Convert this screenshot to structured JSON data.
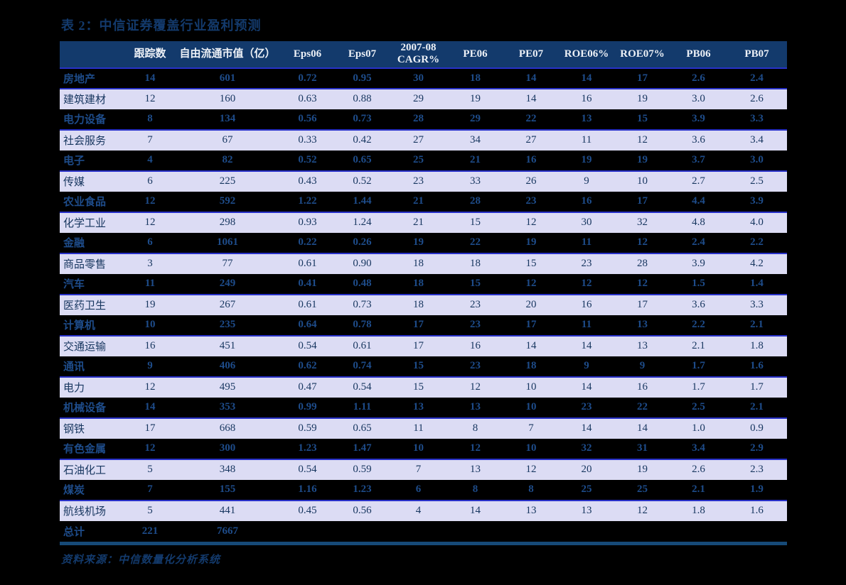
{
  "page": {
    "title": "表 2：中信证券覆盖行业盈利预测",
    "source_note": "资料来源：中信数量化分析系统"
  },
  "colors": {
    "background": "#000000",
    "header_bg": "#133A6C",
    "header_text": "#EDF1F7",
    "dark_row_bg": "#000000",
    "dark_row_text": "#1E4C8A",
    "light_row_bg": "#DCDCF4",
    "light_row_text": "#17365F",
    "separator_blue": "#2831C8",
    "rule_navy": "#164A78",
    "title_text": "#133A6C"
  },
  "table": {
    "columns": [
      "",
      "跟踪数",
      "自由流通市值（亿）",
      "Eps06",
      "Eps07",
      "2007-08 CAGR%",
      "PE06",
      "PE07",
      "ROE06%",
      "ROE07%",
      "PB06",
      "PB07"
    ],
    "rows": [
      [
        "房地产",
        "14",
        "601",
        "0.72",
        "0.95",
        "30",
        "18",
        "14",
        "14",
        "17",
        "2.6",
        "2.4"
      ],
      [
        "建筑建材",
        "12",
        "160",
        "0.63",
        "0.88",
        "29",
        "19",
        "14",
        "16",
        "19",
        "3.0",
        "2.6"
      ],
      [
        "电力设备",
        "8",
        "134",
        "0.56",
        "0.73",
        "28",
        "29",
        "22",
        "13",
        "15",
        "3.9",
        "3.3"
      ],
      [
        "社会服务",
        "7",
        "67",
        "0.33",
        "0.42",
        "27",
        "34",
        "27",
        "11",
        "12",
        "3.6",
        "3.4"
      ],
      [
        "电子",
        "4",
        "82",
        "0.52",
        "0.65",
        "25",
        "21",
        "16",
        "19",
        "19",
        "3.7",
        "3.0"
      ],
      [
        "传媒",
        "6",
        "225",
        "0.43",
        "0.52",
        "23",
        "33",
        "26",
        "9",
        "10",
        "2.7",
        "2.5"
      ],
      [
        "农业食品",
        "12",
        "592",
        "1.22",
        "1.44",
        "21",
        "28",
        "23",
        "16",
        "17",
        "4.4",
        "3.9"
      ],
      [
        "化学工业",
        "12",
        "298",
        "0.93",
        "1.24",
        "21",
        "15",
        "12",
        "30",
        "32",
        "4.8",
        "4.0"
      ],
      [
        "金融",
        "6",
        "1061",
        "0.22",
        "0.26",
        "19",
        "22",
        "19",
        "11",
        "12",
        "2.4",
        "2.2"
      ],
      [
        "商品零售",
        "3",
        "77",
        "0.61",
        "0.90",
        "18",
        "18",
        "15",
        "23",
        "28",
        "3.9",
        "4.2"
      ],
      [
        "汽车",
        "11",
        "249",
        "0.41",
        "0.48",
        "18",
        "15",
        "12",
        "12",
        "12",
        "1.5",
        "1.4"
      ],
      [
        "医药卫生",
        "19",
        "267",
        "0.61",
        "0.73",
        "18",
        "23",
        "20",
        "16",
        "17",
        "3.6",
        "3.3"
      ],
      [
        "计算机",
        "10",
        "235",
        "0.64",
        "0.78",
        "17",
        "23",
        "17",
        "11",
        "13",
        "2.2",
        "2.1"
      ],
      [
        "交通运输",
        "16",
        "451",
        "0.54",
        "0.61",
        "17",
        "16",
        "14",
        "14",
        "13",
        "2.1",
        "1.8"
      ],
      [
        "通讯",
        "9",
        "406",
        "0.62",
        "0.74",
        "15",
        "23",
        "18",
        "9",
        "9",
        "1.7",
        "1.6"
      ],
      [
        "电力",
        "12",
        "495",
        "0.47",
        "0.54",
        "15",
        "12",
        "10",
        "14",
        "16",
        "1.7",
        "1.7"
      ],
      [
        "机械设备",
        "14",
        "353",
        "0.99",
        "1.11",
        "13",
        "13",
        "10",
        "23",
        "22",
        "2.5",
        "2.1"
      ],
      [
        "钢铁",
        "17",
        "668",
        "0.59",
        "0.65",
        "11",
        "8",
        "7",
        "14",
        "14",
        "1.0",
        "0.9"
      ],
      [
        "有色金属",
        "12",
        "300",
        "1.23",
        "1.47",
        "10",
        "12",
        "10",
        "32",
        "31",
        "3.4",
        "2.9"
      ],
      [
        "石油化工",
        "5",
        "348",
        "0.54",
        "0.59",
        "7",
        "13",
        "12",
        "20",
        "19",
        "2.6",
        "2.3"
      ],
      [
        "煤炭",
        "7",
        "155",
        "1.16",
        "1.23",
        "6",
        "8",
        "8",
        "25",
        "25",
        "2.1",
        "1.9"
      ],
      [
        "航线机场",
        "5",
        "441",
        "0.45",
        "0.56",
        "4",
        "14",
        "13",
        "13",
        "12",
        "1.8",
        "1.6"
      ],
      [
        "总计",
        "221",
        "7667",
        "",
        "",
        "",
        "",
        "",
        "",
        "",
        "",
        ""
      ]
    ]
  }
}
